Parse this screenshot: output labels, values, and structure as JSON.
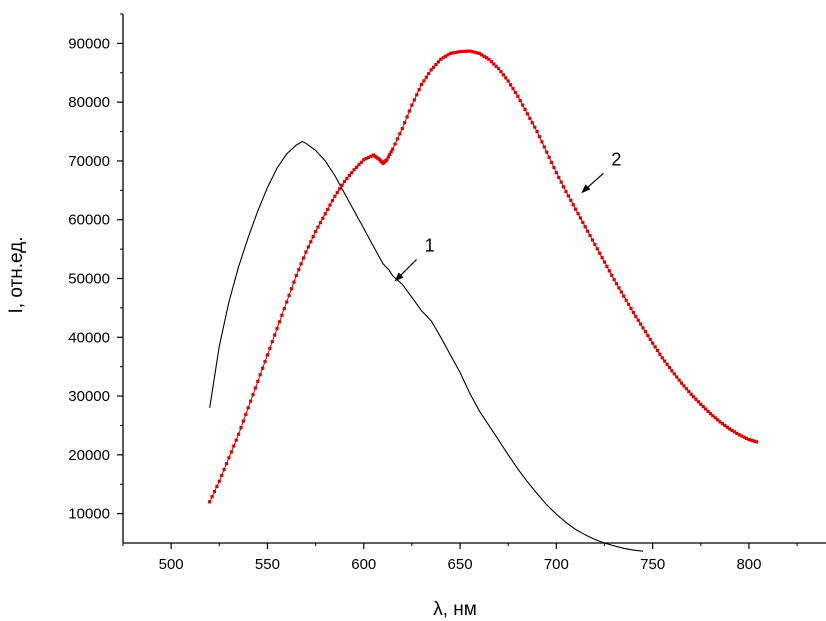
{
  "chart_data": {
    "type": "line",
    "xlabel": "λ, нм",
    "ylabel": "I, отн.ед.",
    "xlim": [
      475,
      840
    ],
    "ylim": [
      5000,
      95000
    ],
    "xticks": [
      500,
      550,
      600,
      650,
      700,
      750,
      800
    ],
    "yticks": [
      10000,
      20000,
      30000,
      40000,
      50000,
      60000,
      70000,
      80000,
      90000
    ],
    "grid": false,
    "legend": "none",
    "series": [
      {
        "label": "1",
        "color": "#000000",
        "style": "thin-line",
        "label_anchor": {
          "x": 616,
          "y": 49500
        },
        "x": [
          520,
          525,
          530,
          535,
          540,
          545,
          550,
          555,
          560,
          565,
          568,
          570,
          575,
          580,
          585,
          590,
          595,
          600,
          605,
          610,
          613,
          615,
          620,
          625,
          630,
          635,
          640,
          645,
          650,
          655,
          660,
          665,
          670,
          675,
          680,
          685,
          690,
          695,
          700,
          705,
          710,
          715,
          720,
          725,
          730,
          735,
          740,
          745
        ],
        "y": [
          28000,
          38500,
          46000,
          52000,
          57000,
          61500,
          65500,
          68800,
          71200,
          72700,
          73300,
          73000,
          71800,
          70000,
          67500,
          64500,
          61500,
          58500,
          55500,
          52500,
          51500,
          50500,
          49000,
          46800,
          44500,
          42800,
          40000,
          37000,
          34000,
          30500,
          27500,
          25000,
          22500,
          20000,
          17600,
          15400,
          13400,
          11500,
          9900,
          8500,
          7300,
          6400,
          5600,
          5000,
          4500,
          4100,
          3800,
          3600
        ]
      },
      {
        "label": "2",
        "color": "#e00000",
        "style": "dotted-markers",
        "label_anchor": {
          "x": 713,
          "y": 64500
        },
        "x": [
          520,
          525,
          530,
          535,
          540,
          545,
          550,
          555,
          560,
          565,
          570,
          575,
          580,
          585,
          590,
          595,
          600,
          605,
          608,
          610,
          612,
          615,
          620,
          625,
          630,
          635,
          640,
          645,
          650,
          655,
          660,
          665,
          670,
          675,
          680,
          685,
          690,
          695,
          700,
          705,
          710,
          715,
          720,
          725,
          730,
          735,
          740,
          745,
          750,
          755,
          760,
          765,
          770,
          775,
          780,
          785,
          790,
          795,
          800,
          804
        ],
        "y": [
          12000,
          15500,
          19500,
          23500,
          28000,
          32500,
          37000,
          41500,
          46000,
          50500,
          54500,
          58000,
          61000,
          64000,
          66500,
          68500,
          70200,
          71000,
          70300,
          69600,
          70200,
          72000,
          75500,
          79500,
          83000,
          85500,
          87300,
          88300,
          88600,
          88700,
          88300,
          87300,
          85700,
          83600,
          81000,
          78000,
          75000,
          71500,
          68000,
          64800,
          61800,
          58800,
          55800,
          52800,
          49800,
          47000,
          44200,
          41600,
          39000,
          36500,
          34300,
          32200,
          30300,
          28600,
          27000,
          25600,
          24400,
          23400,
          22600,
          22200
        ]
      }
    ]
  }
}
